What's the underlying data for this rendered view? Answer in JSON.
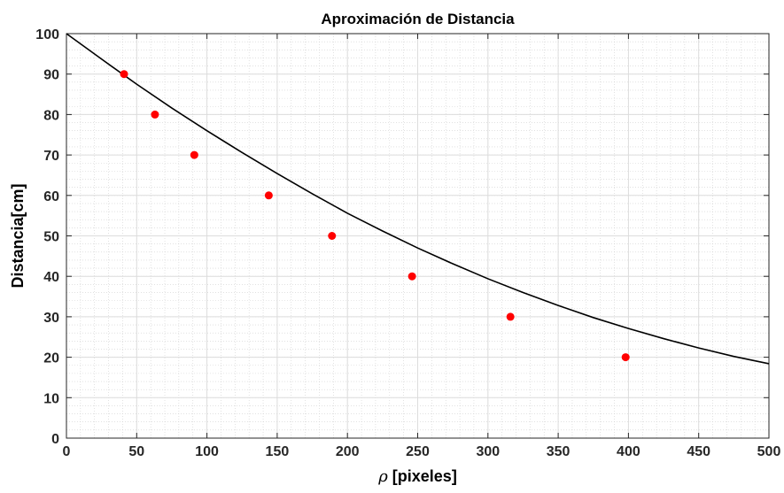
{
  "chart_data": {
    "type": "scatter",
    "title": "Aproximación de Distancia",
    "xlabel": "ρ [pixeles]",
    "xlabel_symbol": "ρ",
    "xlabel_rest": " [pixeles]",
    "ylabel": "Distancia[cm]",
    "xlim": [
      0,
      500
    ],
    "ylim": [
      0,
      100
    ],
    "xticks": [
      0,
      50,
      100,
      150,
      200,
      250,
      300,
      350,
      400,
      450,
      500
    ],
    "yticks": [
      0,
      10,
      20,
      30,
      40,
      50,
      60,
      70,
      80,
      90,
      100
    ],
    "grid": true,
    "minor_grid": true,
    "series": [
      {
        "type": "scatter",
        "color": "#ff0000",
        "x": [
          41,
          63,
          91,
          144,
          189,
          246,
          316,
          398
        ],
        "y": [
          90,
          80,
          70,
          60,
          50,
          40,
          30,
          20
        ]
      },
      {
        "type": "line",
        "color": "#000000",
        "x": [
          0,
          25,
          50,
          75,
          100,
          125,
          150,
          175,
          200,
          225,
          250,
          275,
          300,
          325,
          350,
          375,
          400,
          425,
          450,
          475,
          500
        ],
        "y": [
          100,
          93.7,
          87.5,
          81.6,
          76.0,
          70.6,
          65.4,
          60.4,
          55.6,
          51.2,
          47.0,
          43.1,
          39.4,
          36.0,
          32.8,
          29.8,
          27.1,
          24.6,
          22.3,
          20.2,
          18.4
        ]
      }
    ]
  }
}
